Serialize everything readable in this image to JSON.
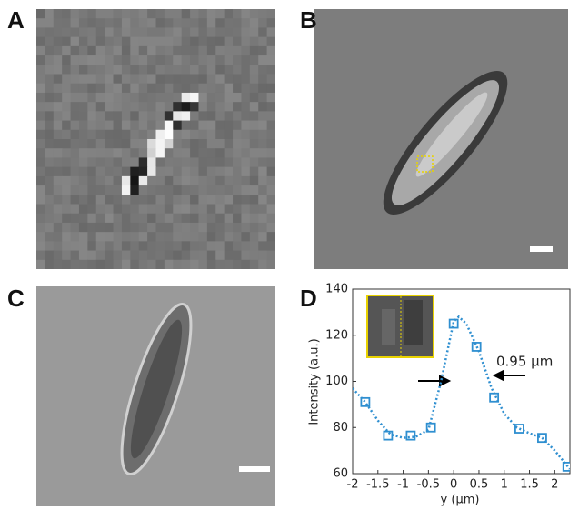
{
  "panels": [
    "A",
    "B",
    "C",
    "D"
  ],
  "chart_data": {
    "type": "line",
    "xlabel": "y (μm)",
    "ylabel": "Intensity (a.u.)",
    "annotation": "0.95 μm",
    "xlim": [
      -2,
      2.3
    ],
    "xticks": [
      -2,
      -1.5,
      -1,
      -0.5,
      0,
      0.5,
      1,
      1.5,
      2
    ],
    "ylim": [
      60,
      140
    ],
    "yticks": [
      60,
      80,
      100,
      120,
      140
    ],
    "series": [
      {
        "color": "#2f8fd0",
        "style": "markers",
        "x": [
          -1.75,
          -1.3,
          -0.85,
          -0.45,
          0.0,
          0.45,
          0.8,
          1.3,
          1.75,
          2.25
        ],
        "values": [
          91,
          76.5,
          76.5,
          80,
          125,
          115,
          93,
          79.5,
          75.5,
          63
        ]
      },
      {
        "color": "#2f8fd0",
        "style": "dotted",
        "x": [
          -2,
          -1.75,
          -1.5,
          -1.25,
          -1,
          -0.75,
          -0.5,
          -0.25,
          0,
          0.1,
          0.25,
          0.5,
          0.75,
          1,
          1.25,
          1.5,
          1.75,
          2,
          2.3
        ],
        "values": [
          97,
          91,
          83,
          77,
          75.5,
          76,
          79,
          100,
          126,
          128,
          125,
          113,
          97,
          86,
          80,
          77.5,
          75.5,
          70,
          62
        ]
      }
    ]
  }
}
